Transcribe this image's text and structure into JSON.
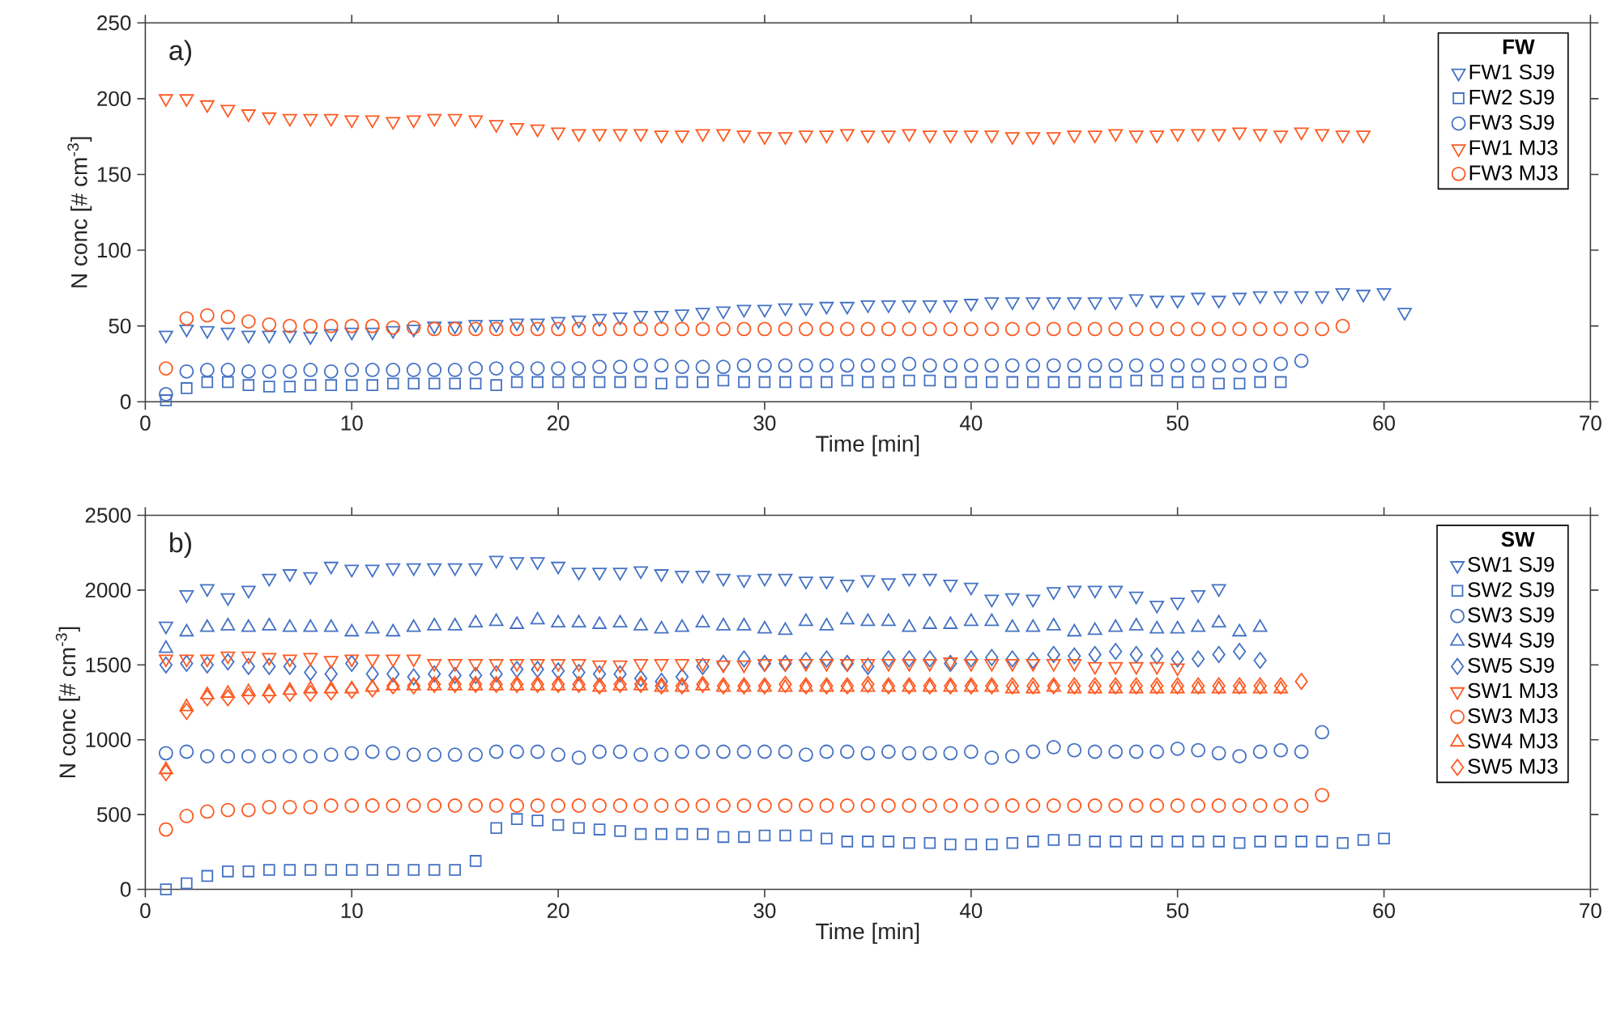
{
  "chart_data": [
    {
      "type": "scatter",
      "xlabel": "Time [min]",
      "ylabel": "N conc [# cm$^{-3}$]",
      "legend_title": "FW",
      "annotations": [
        "a)"
      ],
      "legend": "top right",
      "xlim": [
        0,
        70
      ],
      "xticks": [
        0,
        10,
        20,
        30,
        40,
        50,
        60,
        70
      ],
      "ylim": [
        0,
        250
      ],
      "yticks": [
        0,
        50,
        100,
        150,
        200,
        250
      ],
      "x": [
        1,
        2,
        3,
        4,
        5,
        6,
        7,
        8,
        9,
        10,
        11,
        12,
        13,
        14,
        15,
        16,
        17,
        18,
        19,
        20,
        21,
        22,
        23,
        24,
        25,
        26,
        27,
        28,
        29,
        30,
        31,
        32,
        33,
        34,
        35,
        36,
        37,
        38,
        39,
        40,
        41,
        42,
        43,
        44,
        45,
        46,
        47,
        48,
        49,
        50,
        51,
        52,
        53,
        54,
        55,
        56,
        57,
        58,
        59,
        60,
        61
      ],
      "series": [
        {
          "name": "FW1 SJ9",
          "color": "#4472c4",
          "marker": "triangle_down",
          "values": [
            44,
            48,
            47,
            46,
            44,
            44,
            44,
            43,
            45,
            46,
            46,
            47,
            48,
            50,
            50,
            51,
            51,
            52,
            52,
            53,
            54,
            55,
            56,
            57,
            57,
            58,
            59,
            60,
            61,
            61,
            62,
            62,
            63,
            63,
            64,
            64,
            64,
            64,
            64,
            65,
            66,
            66,
            66,
            66,
            66,
            66,
            66,
            68,
            67,
            67,
            69,
            67,
            69,
            70,
            70,
            70,
            70,
            72,
            71,
            72,
            59
          ]
        },
        {
          "name": "FW2 SJ9",
          "color": "#4472c4",
          "marker": "square",
          "values": [
            1,
            9,
            13,
            13,
            11,
            10,
            10,
            11,
            11,
            11,
            11,
            12,
            12,
            12,
            12,
            12,
            11,
            13,
            13,
            13,
            13,
            13,
            13,
            13,
            12,
            13,
            13,
            14,
            13,
            13,
            13,
            13,
            13,
            14,
            13,
            13,
            14,
            14,
            13,
            13,
            13,
            13,
            13,
            13,
            13,
            13,
            13,
            14,
            14,
            13,
            13,
            12,
            12,
            13,
            13,
            null,
            null,
            null,
            null,
            null,
            null
          ]
        },
        {
          "name": "FW3 SJ9",
          "color": "#4472c4",
          "marker": "circle",
          "values": [
            5,
            20,
            21,
            21,
            20,
            20,
            20,
            21,
            20,
            21,
            21,
            21,
            21,
            21,
            21,
            22,
            22,
            22,
            22,
            22,
            22,
            23,
            23,
            24,
            24,
            23,
            23,
            23,
            24,
            24,
            24,
            24,
            24,
            24,
            24,
            24,
            25,
            24,
            24,
            24,
            24,
            24,
            24,
            24,
            24,
            24,
            24,
            24,
            24,
            24,
            24,
            24,
            24,
            24,
            25,
            27,
            null,
            null,
            null,
            null,
            null
          ]
        },
        {
          "name": "FW1 MJ3",
          "color": "#fc5a22",
          "marker": "triangle_down",
          "values": [
            200,
            200,
            196,
            193,
            190,
            188,
            187,
            187,
            187,
            186,
            186,
            185,
            186,
            187,
            187,
            186,
            183,
            181,
            180,
            178,
            177,
            177,
            177,
            177,
            176,
            176,
            177,
            177,
            176,
            175,
            175,
            176,
            176,
            177,
            176,
            176,
            177,
            176,
            176,
            176,
            176,
            175,
            175,
            175,
            176,
            176,
            177,
            176,
            176,
            177,
            177,
            177,
            178,
            177,
            176,
            178,
            177,
            176,
            176,
            null,
            null
          ]
        },
        {
          "name": "FW3 MJ3",
          "color": "#fc5a22",
          "marker": "circle",
          "values": [
            22,
            55,
            57,
            56,
            53,
            51,
            50,
            50,
            50,
            50,
            50,
            49,
            49,
            48,
            48,
            48,
            48,
            48,
            48,
            48,
            48,
            48,
            48,
            48,
            48,
            48,
            48,
            48,
            48,
            48,
            48,
            48,
            48,
            48,
            48,
            48,
            48,
            48,
            48,
            48,
            48,
            48,
            48,
            48,
            48,
            48,
            48,
            48,
            48,
            48,
            48,
            48,
            48,
            48,
            48,
            48,
            48,
            50,
            null,
            null,
            null
          ]
        }
      ]
    },
    {
      "type": "scatter",
      "xlabel": "Time [min]",
      "ylabel": "N conc [# cm$^{-3}$]",
      "legend_title": "SW",
      "annotations": [
        "b)"
      ],
      "legend": "top right",
      "xlim": [
        0,
        70
      ],
      "xticks": [
        0,
        10,
        20,
        30,
        40,
        50,
        60,
        70
      ],
      "ylim": [
        0,
        2500
      ],
      "yticks": [
        0,
        500,
        1000,
        1500,
        2000,
        2500
      ],
      "x": [
        1,
        2,
        3,
        4,
        5,
        6,
        7,
        8,
        9,
        10,
        11,
        12,
        13,
        14,
        15,
        16,
        17,
        18,
        19,
        20,
        21,
        22,
        23,
        24,
        25,
        26,
        27,
        28,
        29,
        30,
        31,
        32,
        33,
        34,
        35,
        36,
        37,
        38,
        39,
        40,
        41,
        42,
        43,
        44,
        45,
        46,
        47,
        48,
        49,
        50,
        51,
        52,
        53,
        54,
        55,
        56,
        57,
        58,
        59,
        60
      ],
      "series": [
        {
          "name": "SW1 SJ9",
          "color": "#4472c4",
          "marker": "triangle_down",
          "values": [
            1760,
            1970,
            2010,
            1950,
            2000,
            2080,
            2110,
            2090,
            2160,
            2140,
            2140,
            2150,
            2150,
            2150,
            2150,
            2150,
            2200,
            2190,
            2190,
            2160,
            2120,
            2120,
            2120,
            2130,
            2110,
            2100,
            2100,
            2080,
            2070,
            2080,
            2080,
            2060,
            2060,
            2040,
            2070,
            2050,
            2080,
            2080,
            2040,
            2020,
            1940,
            1950,
            1940,
            1990,
            2000,
            2000,
            2000,
            1960,
            1900,
            1920,
            1970,
            2010,
            null,
            null,
            null,
            null,
            null,
            null,
            null,
            null
          ]
        },
        {
          "name": "SW2 SJ9",
          "color": "#4472c4",
          "marker": "square",
          "values": [
            0,
            40,
            90,
            120,
            120,
            130,
            130,
            130,
            130,
            130,
            130,
            130,
            130,
            130,
            130,
            190,
            410,
            470,
            460,
            430,
            410,
            400,
            390,
            370,
            370,
            370,
            370,
            350,
            350,
            360,
            360,
            360,
            340,
            320,
            320,
            320,
            310,
            310,
            300,
            300,
            300,
            310,
            320,
            330,
            330,
            320,
            320,
            320,
            320,
            320,
            320,
            320,
            310,
            320,
            320,
            320,
            320,
            310,
            330,
            340
          ]
        },
        {
          "name": "SW3 SJ9",
          "color": "#4472c4",
          "marker": "circle",
          "values": [
            910,
            920,
            890,
            890,
            890,
            890,
            890,
            890,
            900,
            910,
            920,
            910,
            900,
            900,
            900,
            900,
            920,
            920,
            920,
            900,
            880,
            920,
            920,
            900,
            900,
            920,
            920,
            920,
            920,
            920,
            920,
            900,
            920,
            920,
            910,
            920,
            910,
            910,
            910,
            920,
            880,
            890,
            920,
            950,
            930,
            920,
            920,
            920,
            920,
            940,
            930,
            910,
            890,
            920,
            930,
            920,
            1050,
            null,
            null,
            null
          ]
        },
        {
          "name": "SW4 SJ9",
          "color": "#4472c4",
          "marker": "triangle",
          "values": [
            1610,
            1720,
            1750,
            1760,
            1750,
            1760,
            1750,
            1750,
            1750,
            1720,
            1740,
            1720,
            1750,
            1760,
            1760,
            1780,
            1790,
            1770,
            1800,
            1780,
            1780,
            1770,
            1780,
            1760,
            1740,
            1750,
            1780,
            1760,
            1760,
            1740,
            1730,
            1790,
            1760,
            1800,
            1790,
            1790,
            1750,
            1770,
            1770,
            1790,
            1790,
            1750,
            1750,
            1760,
            1720,
            1730,
            1750,
            1760,
            1740,
            1740,
            1750,
            1780,
            1720,
            1750,
            null,
            null,
            null,
            null,
            null,
            null
          ]
        },
        {
          "name": "SW5 SJ9",
          "color": "#4472c4",
          "marker": "diamond",
          "values": [
            1500,
            1510,
            1500,
            1520,
            1490,
            1490,
            1490,
            1450,
            1440,
            1510,
            1440,
            1440,
            1420,
            1440,
            1430,
            1430,
            1440,
            1470,
            1470,
            1460,
            1450,
            1440,
            1440,
            1410,
            1390,
            1420,
            1490,
            1510,
            1540,
            1510,
            1510,
            1530,
            1540,
            1510,
            1490,
            1540,
            1540,
            1540,
            1510,
            1540,
            1550,
            1540,
            1530,
            1570,
            1560,
            1570,
            1590,
            1570,
            1560,
            1540,
            1540,
            1570,
            1590,
            1530,
            null,
            null,
            null,
            null,
            null,
            null
          ]
        },
        {
          "name": "SW1 MJ3",
          "color": "#fc5a22",
          "marker": "triangle_down",
          "values": [
            1540,
            1540,
            1540,
            1560,
            1560,
            1550,
            1540,
            1550,
            1530,
            1540,
            1540,
            1540,
            1540,
            1510,
            1510,
            1510,
            1510,
            1510,
            1510,
            1510,
            1510,
            1500,
            1500,
            1510,
            1510,
            1510,
            1510,
            1500,
            1500,
            1510,
            1510,
            1510,
            1510,
            1510,
            1510,
            1510,
            1510,
            1510,
            1520,
            1510,
            1510,
            1510,
            1510,
            1510,
            1510,
            1490,
            1490,
            1490,
            1490,
            1480,
            null,
            null,
            null,
            null,
            null,
            null,
            null,
            null,
            null,
            null
          ]
        },
        {
          "name": "SW3 MJ3",
          "color": "#fc5a22",
          "marker": "circle",
          "values": [
            400,
            490,
            520,
            530,
            530,
            550,
            550,
            550,
            560,
            560,
            560,
            560,
            560,
            560,
            560,
            560,
            560,
            560,
            560,
            560,
            560,
            560,
            560,
            560,
            560,
            560,
            560,
            560,
            560,
            560,
            560,
            560,
            560,
            560,
            560,
            560,
            560,
            560,
            560,
            560,
            560,
            560,
            560,
            560,
            560,
            560,
            560,
            560,
            560,
            560,
            560,
            560,
            560,
            560,
            560,
            560,
            630,
            null,
            null,
            null
          ]
        },
        {
          "name": "SW4 MJ3",
          "color": "#fc5a22",
          "marker": "triangle",
          "values": [
            800,
            1220,
            1300,
            1310,
            1320,
            1320,
            1330,
            1340,
            1340,
            1340,
            1350,
            1360,
            1360,
            1360,
            1360,
            1360,
            1360,
            1360,
            1360,
            1360,
            1360,
            1350,
            1360,
            1360,
            1350,
            1350,
            1360,
            1350,
            1350,
            1350,
            1350,
            1350,
            1350,
            1350,
            1350,
            1350,
            1350,
            1350,
            1350,
            1350,
            1350,
            1340,
            1340,
            1350,
            1340,
            1340,
            1340,
            1340,
            1340,
            1340,
            1340,
            1340,
            1340,
            1340,
            1340,
            null,
            null,
            null,
            null,
            null
          ]
        },
        {
          "name": "SW5 MJ3",
          "color": "#fc5a22",
          "marker": "diamond",
          "values": [
            780,
            1190,
            1280,
            1280,
            1290,
            1300,
            1310,
            1310,
            1320,
            1330,
            1340,
            1360,
            1360,
            1370,
            1370,
            1370,
            1370,
            1370,
            1370,
            1370,
            1370,
            1360,
            1370,
            1370,
            1360,
            1360,
            1370,
            1360,
            1360,
            1360,
            1370,
            1360,
            1360,
            1360,
            1370,
            1360,
            1360,
            1360,
            1360,
            1360,
            1360,
            1360,
            1360,
            1360,
            1360,
            1360,
            1360,
            1360,
            1360,
            1360,
            1360,
            1360,
            1360,
            1360,
            1360,
            1390,
            null,
            null,
            null,
            null
          ]
        }
      ]
    }
  ]
}
